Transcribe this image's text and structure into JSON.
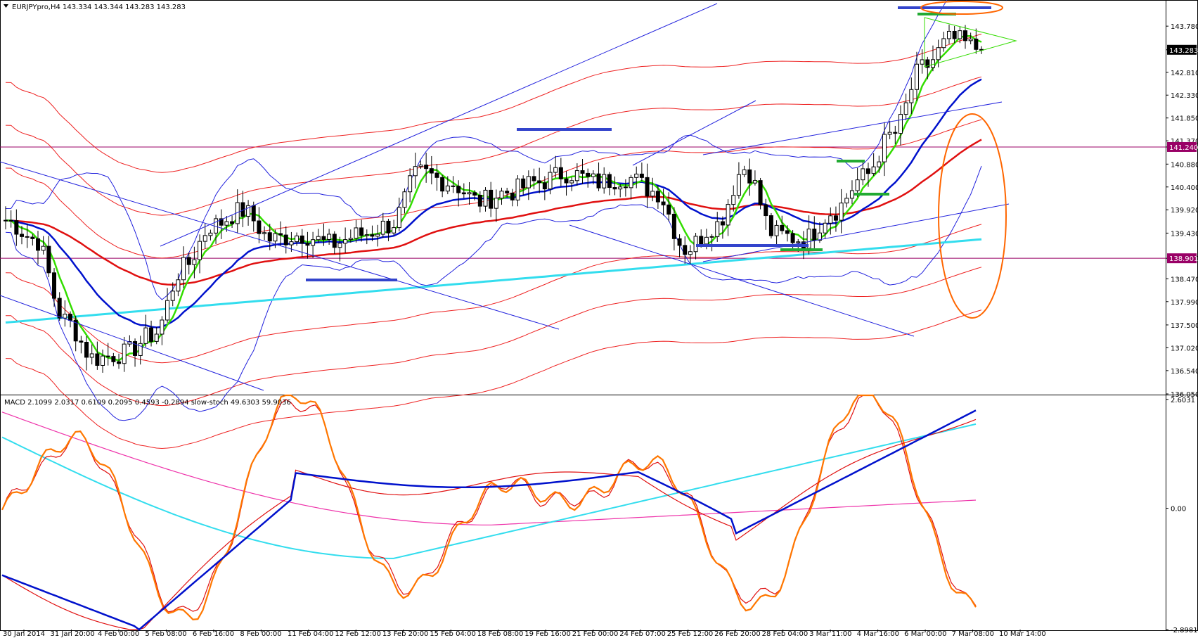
{
  "header": {
    "main_title": "EURJPYpro,H4  143.334 143.344 143.283 143.283",
    "sub_title": "MACD 2.1099 2.0317 0.6109 0.2095 0.4593 -0.2894  slow-stoch 49.6303 59.9036"
  },
  "colors": {
    "background": "#ffffff",
    "grid_border": "#000000",
    "candle_bull": "#ffffff",
    "candle_bear": "#000000",
    "sma_green": "#33dd00",
    "ema_blue": "#0011cc",
    "ma_red": "#e01010",
    "ma_cyan": "#33ddee",
    "bands_blue": "#2222dd",
    "bands_red": "#ee2222",
    "stoch_orange": "#ff7700",
    "macd_pink": "#ee33aa",
    "hline_purple": "#990066",
    "marker_green": "#22aa33",
    "marker_blue": "#3344cc",
    "ellipse_orange": "#ff6600"
  },
  "chart_data": [
    {
      "type": "candlestick",
      "symbol": "EURJPYpro",
      "timeframe": "H4",
      "ylim": [
        136.05,
        144.3
      ],
      "y_ticks": [
        "143.780",
        "143.283",
        "142.810",
        "142.330",
        "141.850",
        "141.370",
        "141.240",
        "140.880",
        "140.400",
        "139.920",
        "139.430",
        "138.901",
        "138.470",
        "137.990",
        "137.500",
        "137.020",
        "136.540",
        "136.050"
      ],
      "price_labels": [
        {
          "label": "143.283",
          "value": 143.283,
          "highlight": "current"
        },
        {
          "label": "141.240",
          "value": 141.24,
          "highlight": "level"
        },
        {
          "label": "138.901",
          "value": 138.901,
          "highlight": "level"
        }
      ],
      "x_labels": [
        "30 Jan 2014",
        "31 Jan 20:00",
        "4 Feb 00:00",
        "5 Feb 08:00",
        "6 Feb 16:00",
        "8 Feb 00:00",
        "11 Feb 04:00",
        "12 Feb 12:00",
        "13 Feb 20:00",
        "15 Feb 04:00",
        "18 Feb 08:00",
        "19 Feb 16:00",
        "21 Feb 00:00",
        "24 Feb 07:00",
        "25 Feb 12:00",
        "26 Feb 20:00",
        "28 Feb 04:00",
        "3 Mar 11:00",
        "4 Mar 16:00",
        "6 Mar 00:00",
        "7 Mar 08:00",
        "10 Mar 14:00"
      ],
      "horizontal_levels": [
        141.24,
        138.901
      ],
      "anchor_prices": [
        139.7,
        139.3,
        137.6,
        136.8,
        136.9,
        137.3,
        138.7,
        139.6,
        139.9,
        139.3,
        139.4,
        139.2,
        139.4,
        139.6,
        140.7,
        140.5,
        140.1,
        140.3,
        140.5,
        140.7,
        140.5,
        140.6,
        140.3,
        139.1,
        139.6,
        140.8,
        139.4,
        139.3,
        139.9,
        140.6,
        141.5,
        142.9,
        143.5,
        143.3
      ],
      "series": [
        {
          "name": "Close",
          "values": [
            139.6,
            139.4,
            139.2,
            138.9,
            138.7,
            138.2,
            137.9,
            137.6,
            137.2,
            136.9,
            136.8,
            136.9,
            137.0,
            137.1,
            137.2,
            137.3,
            137.9,
            138.6,
            139.1,
            139.5,
            139.8,
            139.6,
            139.3,
            139.2,
            139.3,
            139.4,
            139.3,
            139.2,
            139.3,
            139.5,
            140.3,
            140.7,
            140.5,
            140.2,
            140.3,
            140.5,
            140.6,
            140.5,
            140.6,
            140.5,
            140.4,
            139.6,
            139.3,
            139.6,
            140.4,
            140.8,
            139.5,
            139.4,
            139.2,
            139.6,
            139.9,
            140.3,
            140.6,
            141.6,
            142.5,
            142.9,
            143.2,
            143.283
          ]
        }
      ]
    },
    {
      "type": "line",
      "name": "MACD / slow-stoch",
      "ylim": [
        -2.9,
        2.7
      ],
      "y_ticks": [
        "2.6031",
        "0.00",
        "-2.8981"
      ]
    }
  ]
}
